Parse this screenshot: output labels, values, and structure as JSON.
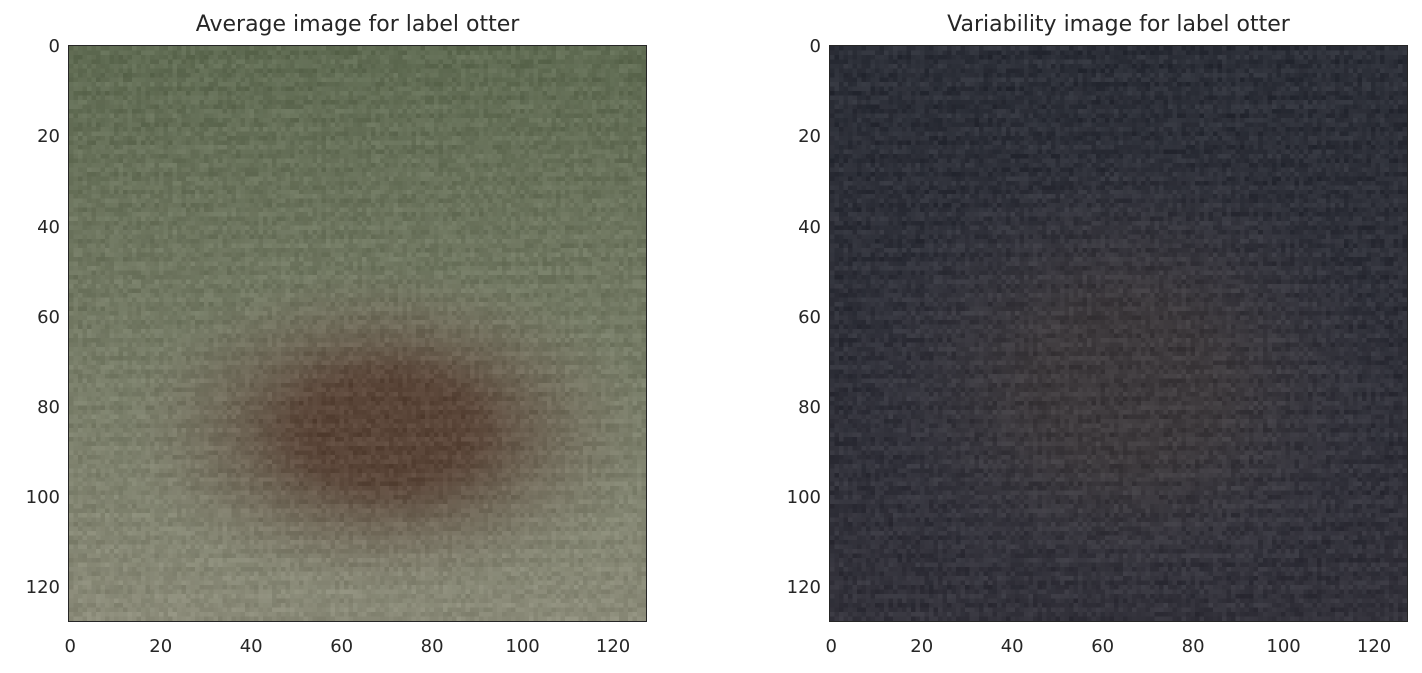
{
  "chart_data": [
    {
      "type": "heatmap",
      "title": "Average image for label otter",
      "xlabel": "",
      "ylabel": "",
      "xlim": [
        0,
        127
      ],
      "ylim": [
        127,
        0
      ],
      "x_ticks": [
        0,
        20,
        40,
        60,
        80,
        100,
        120
      ],
      "y_ticks": [
        0,
        20,
        40,
        60,
        80,
        100,
        120
      ],
      "grid": false,
      "image": {
        "width": 128,
        "height": 128,
        "description_colors": {
          "background_top": "#5f6b52",
          "background_bottom": "#8a8a78",
          "blob_center": "#5a4538",
          "blob_edge": "#7b7566"
        },
        "blob": {
          "center_x": 70,
          "center_y": 85,
          "radius_x": 45,
          "radius_y": 28
        }
      }
    },
    {
      "type": "heatmap",
      "title": "Variability image for label otter",
      "xlabel": "",
      "ylabel": "",
      "xlim": [
        0,
        127
      ],
      "ylim": [
        127,
        0
      ],
      "x_ticks": [
        0,
        20,
        40,
        60,
        80,
        100,
        120
      ],
      "y_ticks": [
        0,
        20,
        40,
        60,
        80,
        100,
        120
      ],
      "grid": false,
      "image": {
        "width": 128,
        "height": 128,
        "description_colors": {
          "background_top": "#2c2f38",
          "background_bottom": "#33323b",
          "blob_center": "#3e3a3d",
          "blob_edge": "#393943"
        },
        "blob": {
          "center_x": 65,
          "center_y": 75,
          "radius_x": 48,
          "radius_y": 40
        }
      }
    }
  ]
}
